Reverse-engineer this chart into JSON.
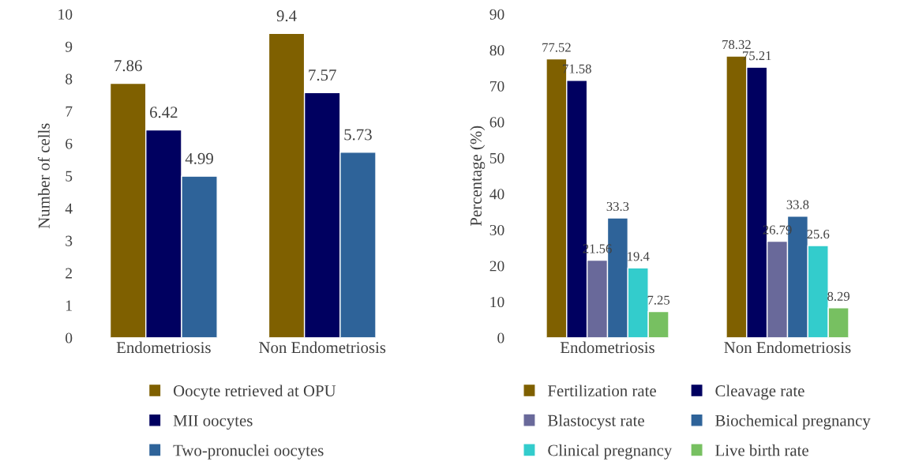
{
  "chart_data": [
    {
      "type": "bar",
      "ylabel": "Number of cells",
      "categories": [
        "Endometriosis",
        "Non Endometriosis"
      ],
      "ylim": [
        0,
        10
      ],
      "yticks": [
        0,
        1,
        2,
        3,
        4,
        5,
        6,
        7,
        8,
        9,
        10
      ],
      "grid": false,
      "legend": "bottom",
      "data_labels": true,
      "series": [
        {
          "name": "Oocyte retrieved at OPU",
          "color": "#7f6000",
          "values": [
            7.86,
            9.4
          ]
        },
        {
          "name": "MII oocytes",
          "color": "#000060",
          "values": [
            6.42,
            7.57
          ]
        },
        {
          "name": "Two-pronuclei oocytes",
          "color": "#2e6399",
          "values": [
            4.99,
            5.73
          ]
        }
      ]
    },
    {
      "type": "bar",
      "ylabel": "Percentage (%)",
      "categories": [
        "Endometriosis",
        "Non Endometriosis"
      ],
      "ylim": [
        0,
        90
      ],
      "yticks": [
        0,
        10,
        20,
        30,
        40,
        50,
        60,
        70,
        80,
        90
      ],
      "grid": false,
      "legend": "bottom",
      "data_labels": true,
      "series": [
        {
          "name": "Fertilization rate",
          "color": "#7f6000",
          "values": [
            77.52,
            78.32
          ]
        },
        {
          "name": "Cleavage rate",
          "color": "#000060",
          "values": [
            71.58,
            75.21
          ]
        },
        {
          "name": "Blastocyst rate",
          "color": "#69699a",
          "values": [
            21.56,
            26.79
          ]
        },
        {
          "name": "Biochemical pregnancy",
          "color": "#2e6399",
          "values": [
            33.3,
            33.8
          ]
        },
        {
          "name": "Clinical pregnancy",
          "color": "#33cccc",
          "values": [
            19.4,
            25.6
          ]
        },
        {
          "name": "Live birth rate",
          "color": "#77c061",
          "values": [
            7.25,
            8.29
          ]
        }
      ]
    }
  ]
}
